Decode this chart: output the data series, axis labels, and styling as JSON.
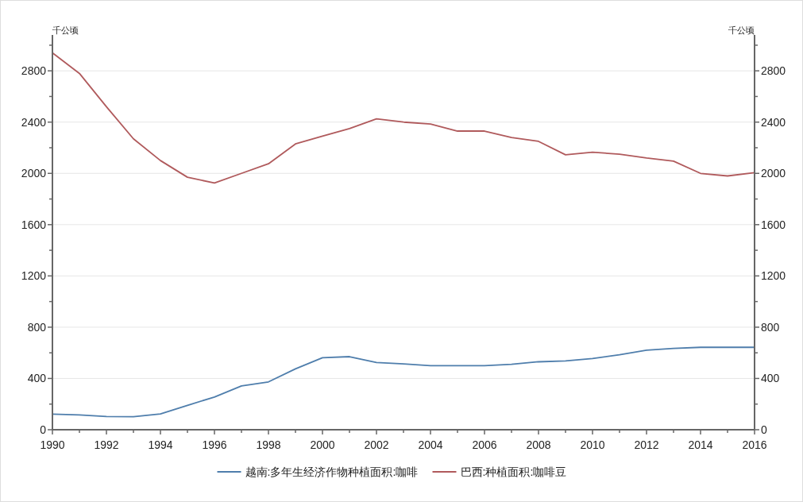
{
  "chart_data": {
    "type": "line",
    "ylabel": "千公顷",
    "y2label": "千公顷",
    "x": [
      1990,
      1991,
      1992,
      1993,
      1994,
      1995,
      1996,
      1997,
      1998,
      1999,
      2000,
      2001,
      2002,
      2003,
      2004,
      2005,
      2006,
      2007,
      2008,
      2009,
      2010,
      2011,
      2012,
      2013,
      2014,
      2015,
      2016
    ],
    "xlim": [
      1990,
      2016
    ],
    "xticks": [
      1990,
      {
        "value": 1991,
        "label": null
      },
      1992,
      {
        "value": 1993,
        "label": null
      },
      1994,
      {
        "value": 1995,
        "label": null
      },
      1996,
      {
        "value": 1997,
        "label": null
      },
      1998,
      {
        "value": 1999,
        "label": null
      },
      2000,
      {
        "value": 2001,
        "label": null
      },
      2002,
      {
        "value": 2003,
        "label": null
      },
      2004,
      {
        "value": 2005,
        "label": null
      },
      2006,
      {
        "value": 2007,
        "label": null
      },
      2008,
      {
        "value": 2009,
        "label": null
      },
      2010,
      {
        "value": 2011,
        "label": null
      },
      2012,
      {
        "value": 2013,
        "label": null
      },
      2014,
      {
        "value": 2015,
        "label": null
      },
      2016
    ],
    "ylim": [
      0,
      3080
    ],
    "yticks": [
      0,
      {
        "value": 200,
        "label": null
      },
      400,
      {
        "value": 600,
        "label": null
      },
      800,
      {
        "value": 1000,
        "label": null
      },
      1200,
      {
        "value": 1400,
        "label": null
      },
      1600,
      {
        "value": 1800,
        "label": null
      },
      2000,
      {
        "value": 2200,
        "label": null
      },
      2400,
      {
        "value": 2600,
        "label": null
      },
      2800,
      {
        "value": 3000,
        "label": null
      }
    ],
    "y2lim": [
      0,
      3080
    ],
    "y2ticks": [
      0,
      {
        "value": 200,
        "label": null
      },
      400,
      {
        "value": 600,
        "label": null
      },
      800,
      {
        "value": 1000,
        "label": null
      },
      1200,
      {
        "value": 1400,
        "label": null
      },
      1600,
      {
        "value": 1800,
        "label": null
      },
      2000,
      {
        "value": 2200,
        "label": null
      },
      2400,
      {
        "value": 2600,
        "label": null
      },
      2800,
      {
        "value": 3000,
        "label": null
      }
    ],
    "series": [
      {
        "name": "越南:多年生经济作物种植面积:咖啡",
        "color": "#4f7eac",
        "values": [
          122,
          115,
          103,
          102,
          123,
          190,
          255,
          342,
          373,
          475,
          562,
          570,
          525,
          513,
          500,
          500,
          500,
          510,
          530,
          537,
          555,
          585,
          620,
          635,
          643,
          643,
          643
        ]
      },
      {
        "name": "巴西:种植面积:咖啡豆",
        "color": "#b05a5c",
        "values": [
          2940,
          2780,
          2520,
          2270,
          2100,
          1970,
          1925,
          2000,
          2075,
          2230,
          2290,
          2350,
          2425,
          2400,
          2385,
          2330,
          2330,
          2280,
          2250,
          2145,
          2165,
          2150,
          2120,
          2095,
          2000,
          1980,
          2005
        ]
      }
    ],
    "grid": "y",
    "legend": "bottom",
    "marker": "none",
    "line_style": "solid"
  }
}
